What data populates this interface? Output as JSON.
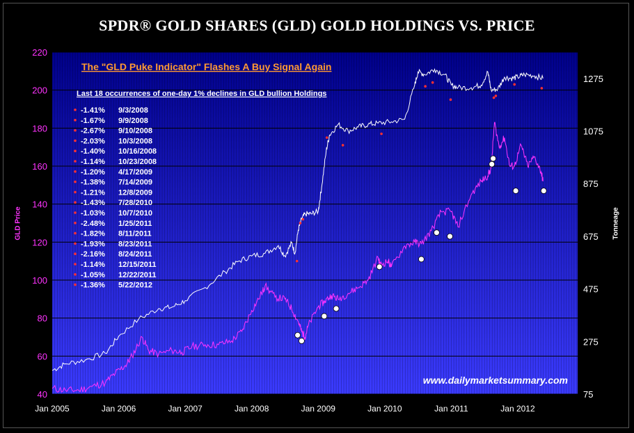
{
  "title": "SPDR® GOLD SHARES (GLD) GOLD HOLDINGS VS. PRICE",
  "colors": {
    "plot_top": "#00008a",
    "plot_bottom": "#3b3bff",
    "price": "#ff33ff",
    "holdings": "#ffffff",
    "marker_red": "#ff3030",
    "headline": "#ff9a33"
  },
  "chart_data": {
    "type": "line",
    "title": "SPDR® GOLD SHARES (GLD) GOLD HOLDINGS VS. PRICE",
    "headline": "The \"GLD Puke Indicator\" Flashes A Buy Signal Again",
    "watermark": "www.dailymarketsummary.com",
    "ylabel_left": "GLD Price",
    "ylabel_right": "Tonneage",
    "left_axis": {
      "min": 40,
      "max": 220,
      "ticks": [
        "40",
        "60",
        "80",
        "100",
        "120",
        "140",
        "160",
        "180",
        "200",
        "220"
      ]
    },
    "right_axis": {
      "min": 75,
      "max": 1375,
      "ticks": [
        "75",
        "275",
        "475",
        "675",
        "875",
        "1075",
        "1275"
      ]
    },
    "x_axis": {
      "start": 2005.0,
      "end": 2012.9,
      "ticks": [
        {
          "year": 2005,
          "label": "Jan 2005"
        },
        {
          "year": 2006,
          "label": "Jan 2006"
        },
        {
          "year": 2007,
          "label": "Jan 2007"
        },
        {
          "year": 2008,
          "label": "Jan 2008"
        },
        {
          "year": 2009,
          "label": "Jan 2009"
        },
        {
          "year": 2010,
          "label": "Jan 2010"
        },
        {
          "year": 2011,
          "label": "Jan 2011"
        },
        {
          "year": 2012,
          "label": "Jan 2012"
        }
      ]
    },
    "series": [
      {
        "name": "GLD Price",
        "axis": "left",
        "x": [
          2005.0,
          2005.2,
          2005.4,
          2005.6,
          2005.8,
          2005.95,
          2006.1,
          2006.2,
          2006.35,
          2006.45,
          2006.6,
          2006.8,
          2006.95,
          2007.1,
          2007.3,
          2007.5,
          2007.7,
          2007.85,
          2008.0,
          2008.15,
          2008.2,
          2008.35,
          2008.5,
          2008.6,
          2008.7,
          2008.75,
          2008.8,
          2008.85,
          2009.0,
          2009.1,
          2009.2,
          2009.3,
          2009.45,
          2009.6,
          2009.75,
          2009.9,
          2009.93,
          2010.05,
          2010.1,
          2010.3,
          2010.45,
          2010.55,
          2010.7,
          2010.85,
          2011.0,
          2011.1,
          2011.3,
          2011.45,
          2011.55,
          2011.6,
          2011.65,
          2011.72,
          2011.8,
          2011.88,
          2011.95,
          2012.05,
          2012.15,
          2012.25,
          2012.35,
          2012.38
        ],
        "y": [
          43,
          42,
          42,
          44,
          46,
          51,
          55,
          60,
          70,
          63,
          61,
          63,
          62,
          65,
          66,
          66,
          68,
          73,
          84,
          93,
          97,
          91,
          90,
          85,
          78,
          73,
          70,
          76,
          86,
          89,
          92,
          90,
          93,
          96,
          100,
          112,
          108,
          110,
          107,
          118,
          120,
          119,
          126,
          136,
          136,
          128,
          145,
          152,
          155,
          159,
          183,
          170,
          175,
          160,
          160,
          171,
          160,
          165,
          157,
          152
        ]
      },
      {
        "name": "GLD Holdings (Tonneage)",
        "axis": "right",
        "x": [
          2005.0,
          2005.2,
          2005.5,
          2005.8,
          2006.0,
          2006.3,
          2006.6,
          2006.8,
          2007.0,
          2007.3,
          2007.6,
          2007.8,
          2008.0,
          2008.2,
          2008.4,
          2008.5,
          2008.6,
          2008.65,
          2008.7,
          2008.75,
          2008.8,
          2008.9,
          2009.0,
          2009.05,
          2009.12,
          2009.17,
          2009.3,
          2009.45,
          2009.6,
          2009.75,
          2009.9,
          2010.1,
          2010.3,
          2010.45,
          2010.5,
          2010.6,
          2010.75,
          2010.9,
          2011.0,
          2011.1,
          2011.3,
          2011.45,
          2011.55,
          2011.6,
          2011.7,
          2011.8,
          2011.9,
          2012.0,
          2012.1,
          2012.25,
          2012.38
        ],
        "y": [
          165,
          190,
          205,
          230,
          295,
          360,
          400,
          405,
          430,
          480,
          540,
          580,
          600,
          610,
          640,
          600,
          650,
          610,
          700,
          740,
          760,
          760,
          770,
          860,
          1000,
          1060,
          1100,
          1075,
          1090,
          1100,
          1105,
          1110,
          1120,
          1250,
          1300,
          1290,
          1310,
          1290,
          1250,
          1240,
          1240,
          1250,
          1300,
          1230,
          1235,
          1280,
          1275,
          1280,
          1290,
          1285,
          1275
        ]
      }
    ],
    "white_markers": [
      {
        "x": 2008.69,
        "y": 71
      },
      {
        "x": 2008.75,
        "y": 68
      },
      {
        "x": 2009.09,
        "y": 81
      },
      {
        "x": 2009.27,
        "y": 85
      },
      {
        "x": 2009.92,
        "y": 107
      },
      {
        "x": 2010.55,
        "y": 111
      },
      {
        "x": 2010.78,
        "y": 125
      },
      {
        "x": 2010.98,
        "y": 123
      },
      {
        "x": 2011.61,
        "y": 161
      },
      {
        "x": 2011.63,
        "y": 164
      },
      {
        "x": 2011.97,
        "y": 147
      },
      {
        "x": 2012.39,
        "y": 147
      }
    ],
    "red_markers": [
      {
        "x": 2008.68,
        "y": 110
      },
      {
        "x": 2008.73,
        "y": 130
      },
      {
        "x": 2008.77,
        "y": 132
      },
      {
        "x": 2009.13,
        "y": 175
      },
      {
        "x": 2009.37,
        "y": 171
      },
      {
        "x": 2009.95,
        "y": 177
      },
      {
        "x": 2010.61,
        "y": 202
      },
      {
        "x": 2010.72,
        "y": 204
      },
      {
        "x": 2010.99,
        "y": 195
      },
      {
        "x": 2011.64,
        "y": 196
      },
      {
        "x": 2011.67,
        "y": 197
      },
      {
        "x": 2011.95,
        "y": 203
      },
      {
        "x": 2012.36,
        "y": 201
      }
    ],
    "occurrences": {
      "heading": "Last 18 occurrences of one-day 1% declines in GLD bullion Holdings",
      "items": [
        {
          "pct": "-1.41%",
          "date": "9/3/2008"
        },
        {
          "pct": "-1.67%",
          "date": "9/9/2008"
        },
        {
          "pct": "-2.67%",
          "date": "9/10/2008"
        },
        {
          "pct": "-2.03%",
          "date": "10/3/2008"
        },
        {
          "pct": "-1.40%",
          "date": "10/16/2008"
        },
        {
          "pct": "-1.14%",
          "date": "10/23/2008"
        },
        {
          "pct": "-1.20%",
          "date": "4/17/2009"
        },
        {
          "pct": "-1.38%",
          "date": "7/14/2009"
        },
        {
          "pct": "-1.21%",
          "date": "12/8/2009"
        },
        {
          "pct": "-1.43%",
          "date": "7/28/2010"
        },
        {
          "pct": "-1.03%",
          "date": "10/7/2010"
        },
        {
          "pct": "-2.48%",
          "date": "1/25/2011"
        },
        {
          "pct": "-1.82%",
          "date": "8/11/2011"
        },
        {
          "pct": "-1.93%",
          "date": "8/23/2011"
        },
        {
          "pct": "-2.16%",
          "date": "8/24/2011"
        },
        {
          "pct": "-1.14%",
          "date": "12/15/2011"
        },
        {
          "pct": "-1.05%",
          "date": "12/22/2011"
        },
        {
          "pct": "-1.36%",
          "date": "5/22/2012"
        }
      ]
    }
  }
}
